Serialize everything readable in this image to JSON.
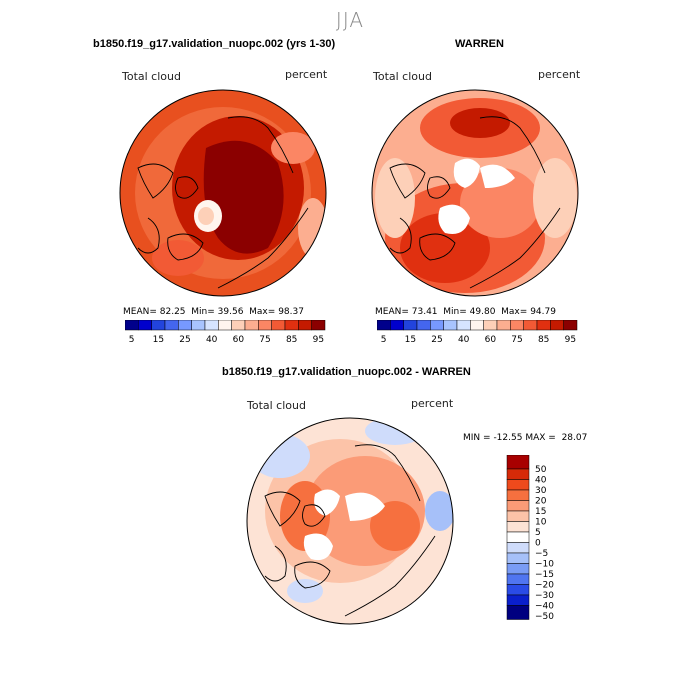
{
  "season": "JJA",
  "colors": {
    "abs_scale": [
      "#00008b",
      "#0000cd",
      "#2244dd",
      "#4466ee",
      "#7799ff",
      "#a8c4ff",
      "#d6e4ff",
      "#fff5ee",
      "#fdd0b8",
      "#fcae90",
      "#fb8664",
      "#f25a35",
      "#e03010",
      "#c41a00",
      "#8b0000"
    ],
    "diff_scale": [
      "#000080",
      "#0a1fcc",
      "#2a4be6",
      "#5075f0",
      "#7a9cf5",
      "#a6c0f9",
      "#cfdcfb",
      "#ffffff",
      "#fde3d5",
      "#fcc3a8",
      "#fb9b77",
      "#f6703f",
      "#ee4a1c",
      "#d62a08",
      "#a80000"
    ]
  },
  "chart_data": [
    {
      "type": "polar-contour",
      "panel": "model",
      "title": "b1850.f19_g17.validation_nuopc.002 (yrs 1-30)",
      "variable": "Total cloud",
      "units": "percent",
      "stats": {
        "mean": "82.25",
        "min": "39.56",
        "max": "98.37"
      },
      "colorbar_ticks": [
        "5",
        "15",
        "25",
        "40",
        "60",
        "75",
        "85",
        "95"
      ]
    },
    {
      "type": "polar-contour",
      "panel": "obs",
      "title": "WARREN",
      "variable": "Total cloud",
      "units": "percent",
      "stats": {
        "mean": "73.41",
        "min": "49.80",
        "max": "94.79"
      },
      "colorbar_ticks": [
        "5",
        "15",
        "25",
        "40",
        "60",
        "75",
        "85",
        "95"
      ]
    },
    {
      "type": "polar-contour",
      "panel": "difference",
      "title": "b1850.f19_g17.validation_nuopc.002 - WARREN",
      "variable": "Total cloud",
      "units": "percent",
      "stats": {
        "min": "-12.55",
        "max": "28.07"
      },
      "colorbar_ticks": [
        "50",
        "40",
        "30",
        "20",
        "15",
        "10",
        "5",
        "0",
        "−5",
        "−10",
        "−15",
        "−20",
        "−30",
        "−40",
        "−50"
      ]
    }
  ],
  "labels": {
    "mean": "MEAN=",
    "min": "Min=",
    "max": "Max=",
    "diff_min": "MIN =",
    "diff_max": "MAX ="
  }
}
